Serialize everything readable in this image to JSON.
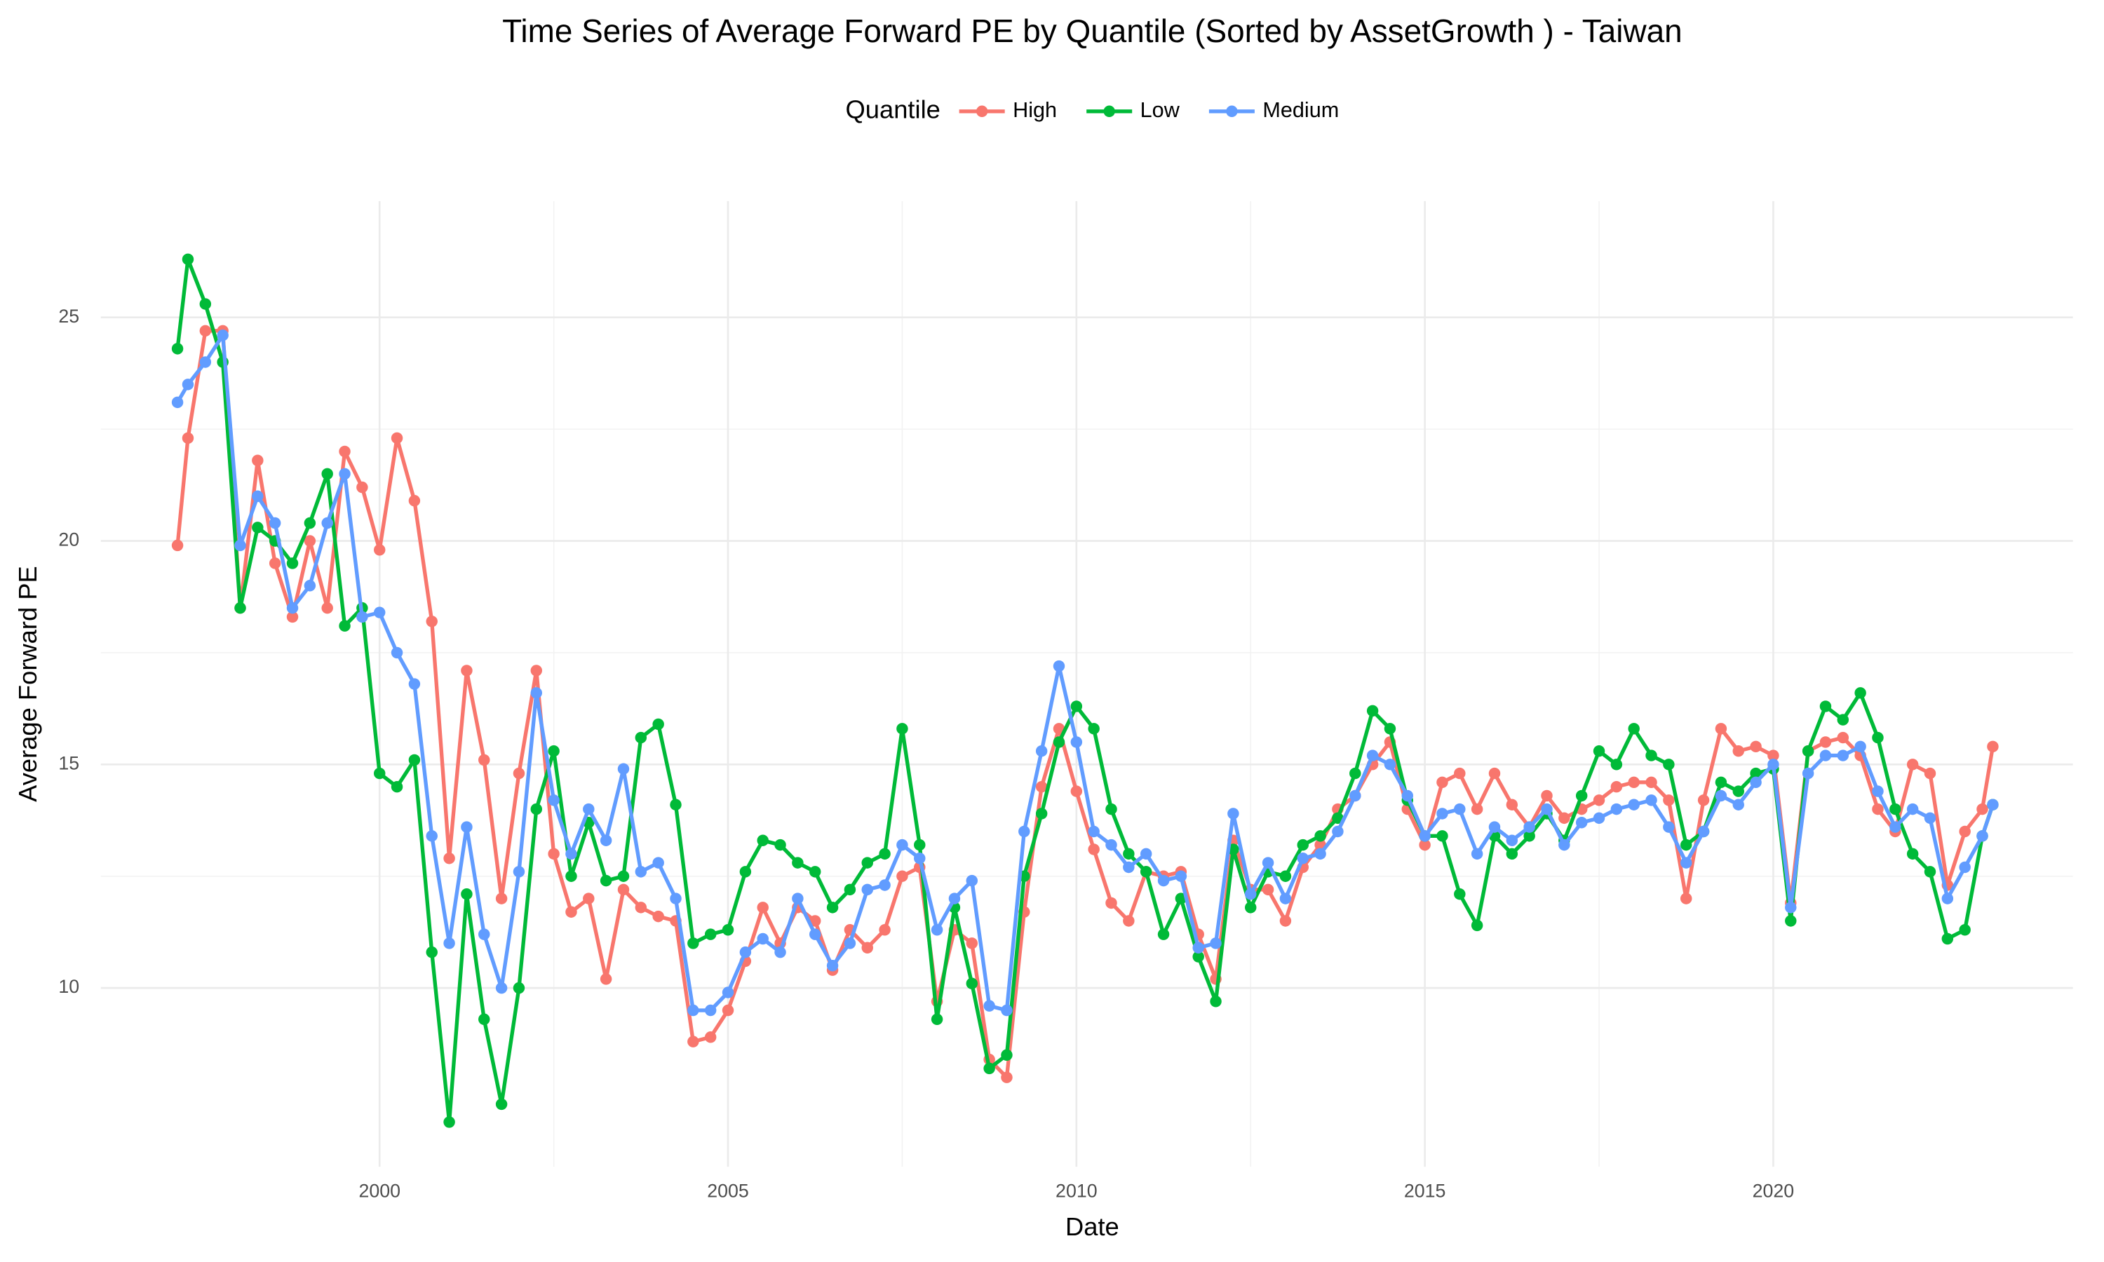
{
  "chart_data": {
    "type": "line",
    "title": "Time Series of Average Forward PE by Quantile (Sorted by AssetGrowth ) - Taiwan",
    "x_label": "Date",
    "y_label": "Average Forward PE",
    "legend_title": "Quantile",
    "legend_position": "top",
    "grid": true,
    "xlim": [
      1996.0,
      2024.3
    ],
    "xticks": [
      2000,
      2005,
      2010,
      2015,
      2020
    ],
    "ylim": [
      6.0,
      27.6
    ],
    "yticks": [
      10,
      15,
      20,
      25
    ],
    "x": [
      1997.1,
      1997.25,
      1997.5,
      1997.75,
      1998.0,
      1998.25,
      1998.5,
      1998.75,
      1999.0,
      1999.25,
      1999.5,
      1999.75,
      2000.0,
      2000.25,
      2000.5,
      2000.75,
      2001.0,
      2001.25,
      2001.5,
      2001.75,
      2002.0,
      2002.25,
      2002.5,
      2002.75,
      2003.0,
      2003.25,
      2003.5,
      2003.75,
      2004.0,
      2004.25,
      2004.5,
      2004.75,
      2005.0,
      2005.25,
      2005.5,
      2005.75,
      2006.0,
      2006.25,
      2006.5,
      2006.75,
      2007.0,
      2007.25,
      2007.5,
      2007.75,
      2008.0,
      2008.25,
      2008.5,
      2008.75,
      2009.0,
      2009.25,
      2009.5,
      2009.75,
      2010.0,
      2010.25,
      2010.5,
      2010.75,
      2011.0,
      2011.25,
      2011.5,
      2011.75,
      2012.0,
      2012.25,
      2012.5,
      2012.75,
      2013.0,
      2013.25,
      2013.5,
      2013.75,
      2014.0,
      2014.25,
      2014.5,
      2014.75,
      2015.0,
      2015.25,
      2015.5,
      2015.75,
      2016.0,
      2016.25,
      2016.5,
      2016.75,
      2017.0,
      2017.25,
      2017.5,
      2017.75,
      2018.0,
      2018.25,
      2018.5,
      2018.75,
      2019.0,
      2019.25,
      2019.5,
      2019.75,
      2020.0,
      2020.25,
      2020.5,
      2020.75,
      2021.0,
      2021.25,
      2021.5,
      2021.75,
      2022.0,
      2022.25,
      2022.5,
      2022.75,
      2023.0,
      2023.15
    ],
    "series": [
      {
        "name": "High",
        "color": "#F8766D",
        "values": [
          19.9,
          22.3,
          24.7,
          24.7,
          18.5,
          21.8,
          19.5,
          18.3,
          20.0,
          18.5,
          22.0,
          21.2,
          19.8,
          22.3,
          20.9,
          18.2,
          12.9,
          17.1,
          15.1,
          12.0,
          14.8,
          17.1,
          13.0,
          11.7,
          12.0,
          10.2,
          12.2,
          11.8,
          11.6,
          11.5,
          8.8,
          8.9,
          9.5,
          10.6,
          11.8,
          11.0,
          11.8,
          11.5,
          10.4,
          11.3,
          10.9,
          11.3,
          12.5,
          12.7,
          9.7,
          11.3,
          11.0,
          8.4,
          8.0,
          11.7,
          14.5,
          15.8,
          14.4,
          13.1,
          11.9,
          11.5,
          12.6,
          12.5,
          12.6,
          11.2,
          10.2,
          13.3,
          12.2,
          12.2,
          11.5,
          12.7,
          13.2,
          14.0,
          14.3,
          15.0,
          15.5,
          14.0,
          13.2,
          14.6,
          14.8,
          14.0,
          14.8,
          14.1,
          13.6,
          14.3,
          13.8,
          14.0,
          14.2,
          14.5,
          14.6,
          14.6,
          14.2,
          12.0,
          14.2,
          15.8,
          15.3,
          15.4,
          15.2,
          11.9,
          15.3,
          15.5,
          15.6,
          15.2,
          14.0,
          13.5,
          15.0,
          14.8,
          12.3,
          13.5,
          14.0,
          15.4
        ]
      },
      {
        "name": "Low",
        "color": "#00BA38",
        "values": [
          24.3,
          26.3,
          25.3,
          24.0,
          18.5,
          20.3,
          20.0,
          19.5,
          20.4,
          21.5,
          18.1,
          18.5,
          14.8,
          14.5,
          15.1,
          10.8,
          7.0,
          12.1,
          9.3,
          7.4,
          10.0,
          14.0,
          15.3,
          12.5,
          13.7,
          12.4,
          12.5,
          15.6,
          15.9,
          14.1,
          11.0,
          11.2,
          11.3,
          12.6,
          13.3,
          13.2,
          12.8,
          12.6,
          11.8,
          12.2,
          12.8,
          13.0,
          15.8,
          13.2,
          9.3,
          11.8,
          10.1,
          8.2,
          8.5,
          12.5,
          13.9,
          15.5,
          16.3,
          15.8,
          14.0,
          13.0,
          12.6,
          11.2,
          12.0,
          10.7,
          9.7,
          13.1,
          11.8,
          12.6,
          12.5,
          13.2,
          13.4,
          13.8,
          14.8,
          16.2,
          15.8,
          14.2,
          13.4,
          13.4,
          12.1,
          11.4,
          13.4,
          13.0,
          13.4,
          13.9,
          13.3,
          14.3,
          15.3,
          15.0,
          15.8,
          15.2,
          15.0,
          13.2,
          13.5,
          14.6,
          14.4,
          14.8,
          14.9,
          11.5,
          15.3,
          16.3,
          16.0,
          16.6,
          15.6,
          14.0,
          13.0,
          12.6,
          11.1,
          11.3,
          13.4,
          14.1
        ]
      },
      {
        "name": "Medium",
        "color": "#619CFF",
        "values": [
          23.1,
          23.5,
          24.0,
          24.6,
          19.9,
          21.0,
          20.4,
          18.5,
          19.0,
          20.4,
          21.5,
          18.3,
          18.4,
          17.5,
          16.8,
          13.4,
          11.0,
          13.6,
          11.2,
          10.0,
          12.6,
          16.6,
          14.2,
          13.0,
          14.0,
          13.3,
          14.9,
          12.6,
          12.8,
          12.0,
          9.5,
          9.5,
          9.9,
          10.8,
          11.1,
          10.8,
          12.0,
          11.2,
          10.5,
          11.0,
          12.2,
          12.3,
          13.2,
          12.9,
          11.3,
          12.0,
          12.4,
          9.6,
          9.5,
          13.5,
          15.3,
          17.2,
          15.5,
          13.5,
          13.2,
          12.7,
          13.0,
          12.4,
          12.5,
          10.9,
          11.0,
          13.9,
          12.1,
          12.8,
          12.0,
          12.9,
          13.0,
          13.5,
          14.3,
          15.2,
          15.0,
          14.3,
          13.4,
          13.9,
          14.0,
          13.0,
          13.6,
          13.3,
          13.6,
          14.0,
          13.2,
          13.7,
          13.8,
          14.0,
          14.1,
          14.2,
          13.6,
          12.8,
          13.5,
          14.3,
          14.1,
          14.6,
          15.0,
          11.8,
          14.8,
          15.2,
          15.2,
          15.4,
          14.4,
          13.6,
          14.0,
          13.8,
          12.0,
          12.7,
          13.4,
          14.1
        ]
      }
    ]
  }
}
